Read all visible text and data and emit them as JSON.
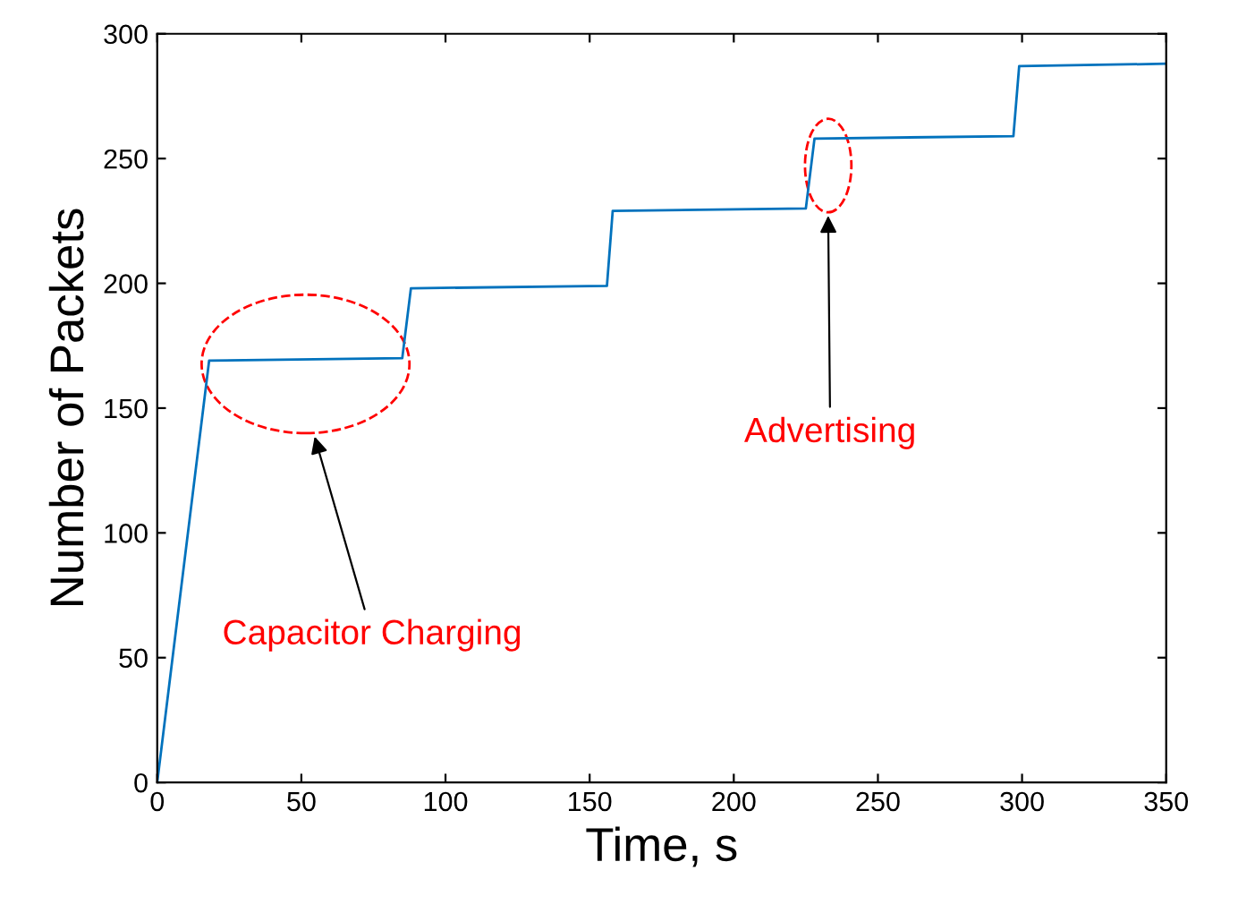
{
  "chart_data": {
    "type": "line",
    "xlabel": "Time, s",
    "ylabel": "Number of Packets",
    "x": [
      0,
      18,
      85,
      88,
      156,
      158,
      225,
      228,
      297,
      299,
      350
    ],
    "series": [
      {
        "color": "#0072bd",
        "values": [
          0,
          169,
          170,
          198,
          199,
          229,
          230,
          258,
          259,
          287,
          288
        ]
      }
    ],
    "xlim": [
      0,
      350
    ],
    "ylim": [
      0,
      300
    ],
    "xticks": [
      0,
      50,
      100,
      150,
      200,
      250,
      300,
      350
    ],
    "yticks": [
      0,
      50,
      100,
      150,
      200,
      250,
      300
    ],
    "grid": false,
    "legend": false,
    "marker": "none",
    "line_style": "solid",
    "annotations": [
      "Capacitor Charging",
      "Advertising"
    ]
  }
}
